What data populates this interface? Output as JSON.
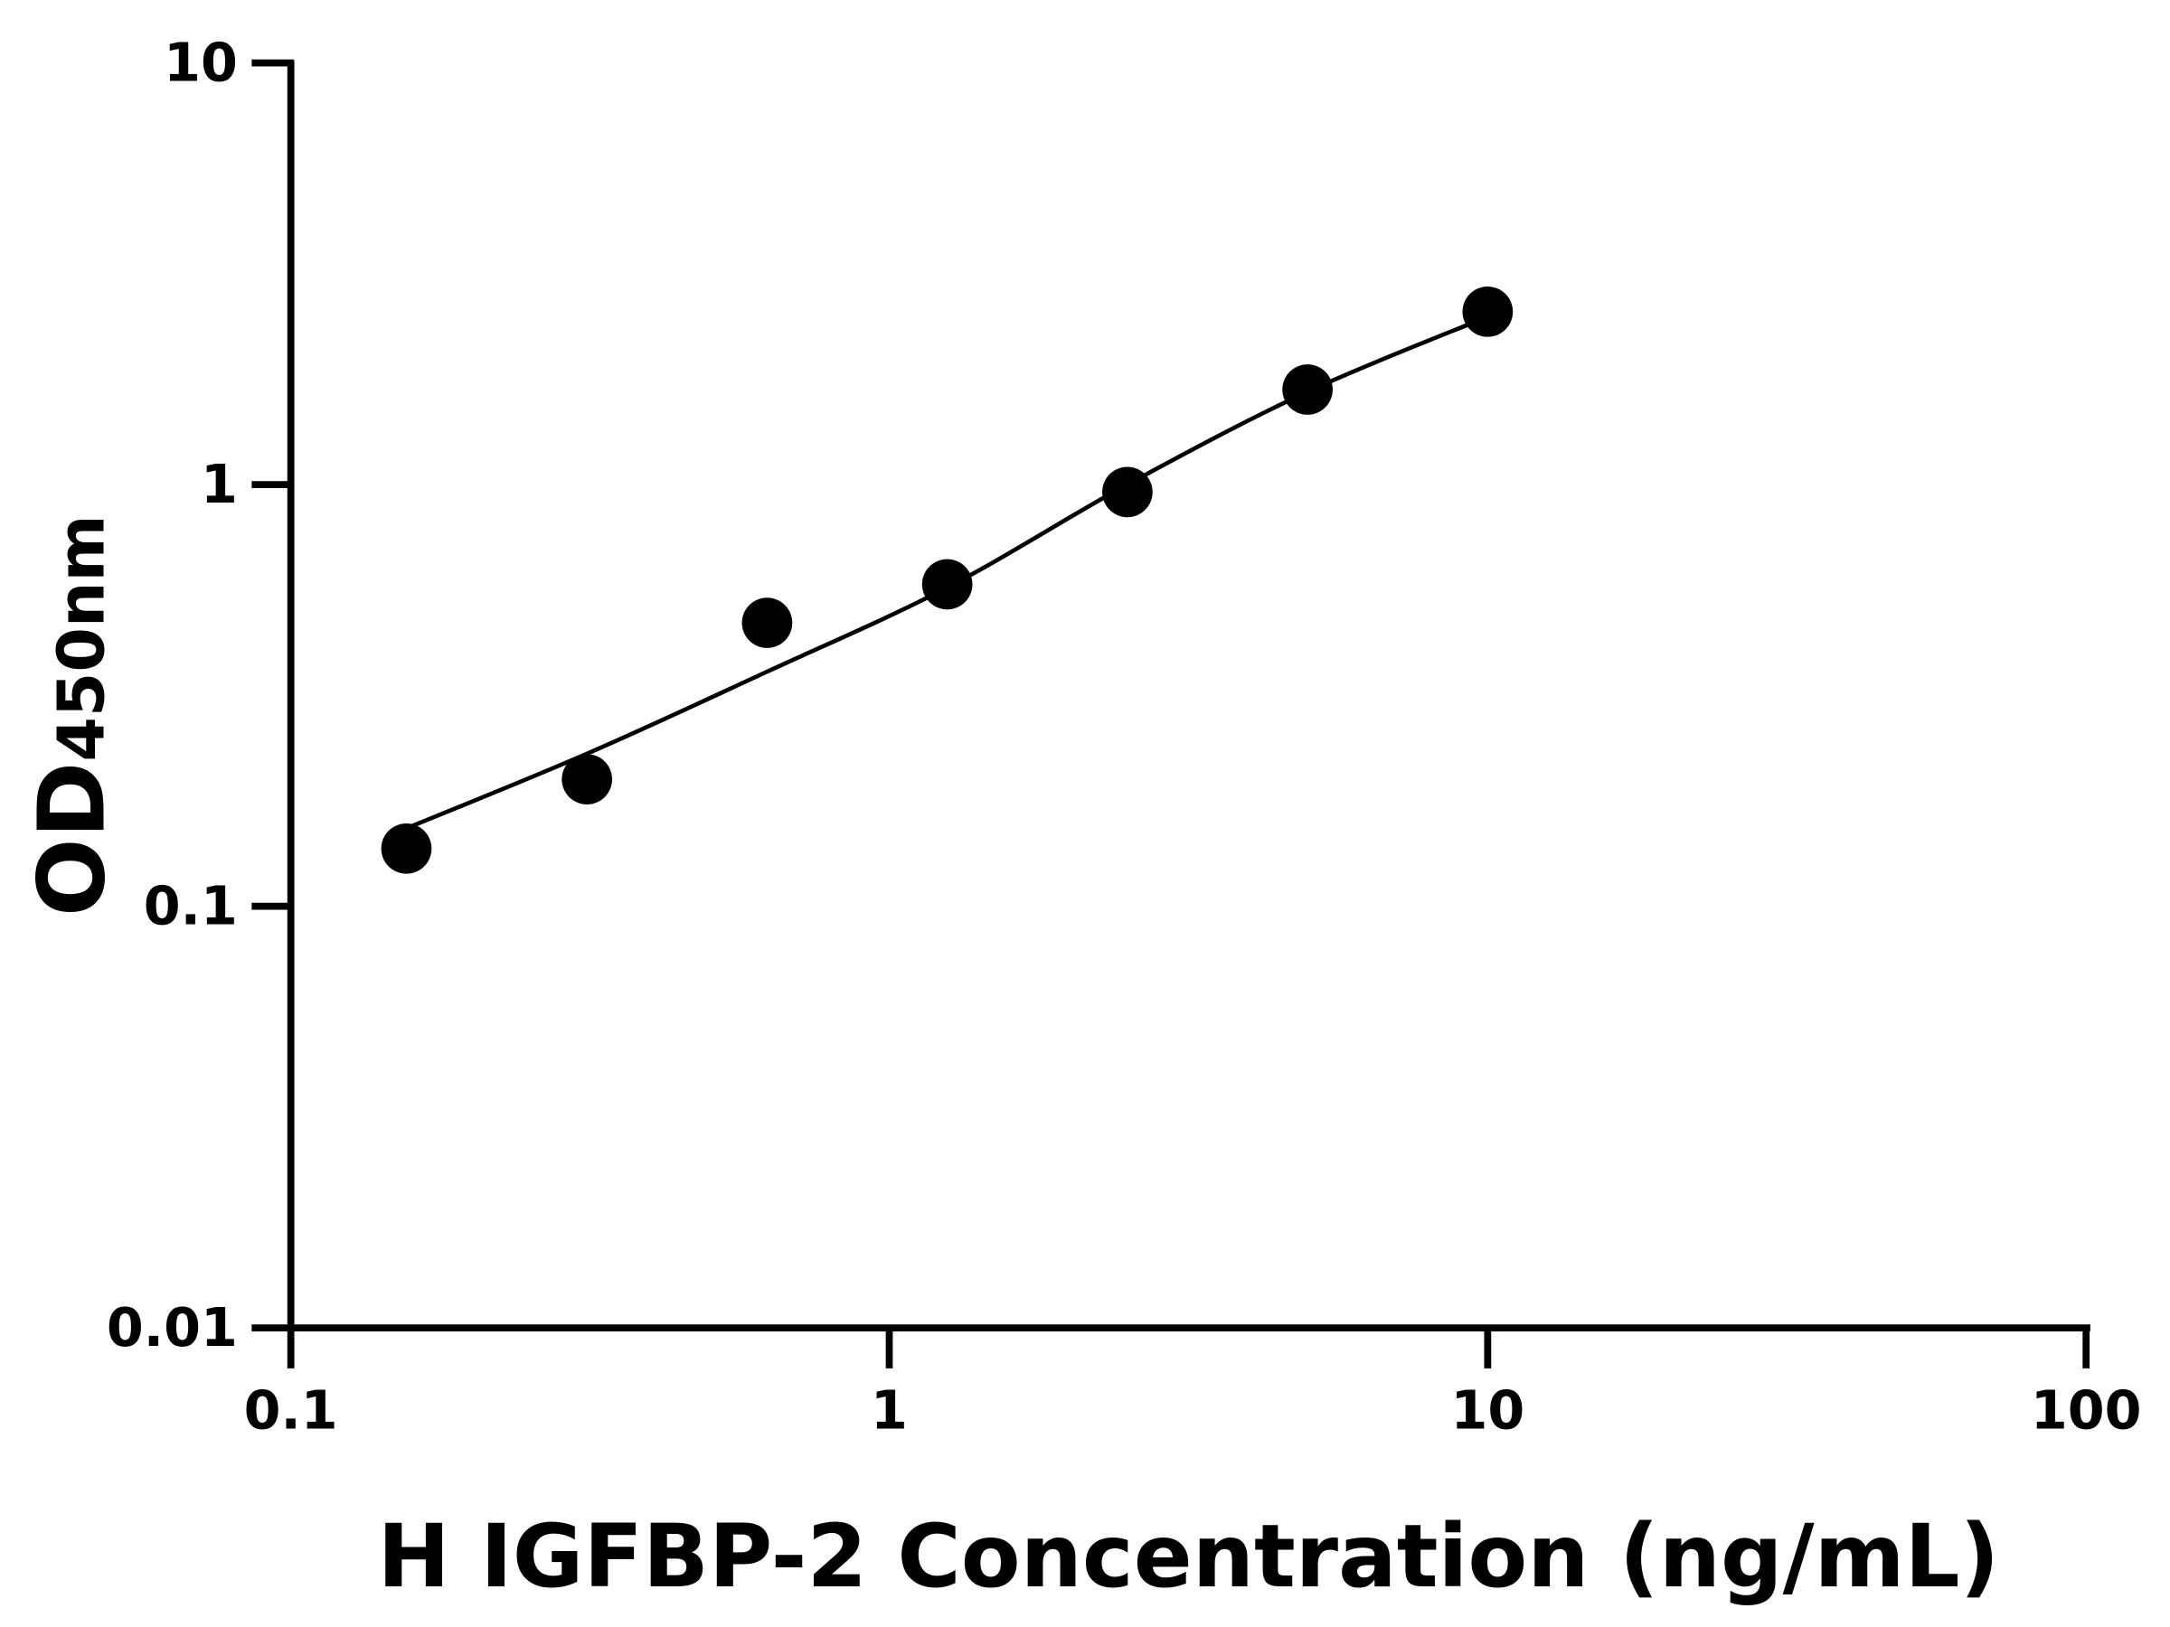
{
  "chart_data": {
    "type": "scatter",
    "title": "",
    "xlabel": "H IGFBP-2 Concentration (ng/mL)",
    "ylabel_main": "OD",
    "ylabel_sub": "450nm",
    "x_scale": "log",
    "y_scale": "log",
    "xlim": [
      0.1,
      100
    ],
    "ylim": [
      0.01,
      10
    ],
    "x_ticks": [
      "0.1",
      "1",
      "10",
      "100"
    ],
    "y_ticks": [
      "0.01",
      "0.1",
      "1",
      "10"
    ],
    "grid": false,
    "legend": "none",
    "marker_color": "#000000",
    "points": [
      {
        "x": 0.156,
        "y": 0.137
      },
      {
        "x": 0.3125,
        "y": 0.2
      },
      {
        "x": 0.625,
        "y": 0.47
      },
      {
        "x": 1.25,
        "y": 0.58
      },
      {
        "x": 2.5,
        "y": 0.96
      },
      {
        "x": 5,
        "y": 1.68
      },
      {
        "x": 10,
        "y": 2.57
      }
    ],
    "fit_curve": [
      {
        "x": 0.156,
        "y": 0.153
      },
      {
        "x": 0.3125,
        "y": 0.23
      },
      {
        "x": 0.625,
        "y": 0.36
      },
      {
        "x": 1.25,
        "y": 0.57
      },
      {
        "x": 2.5,
        "y": 1.0
      },
      {
        "x": 5,
        "y": 1.66
      },
      {
        "x": 10,
        "y": 2.5
      }
    ]
  }
}
